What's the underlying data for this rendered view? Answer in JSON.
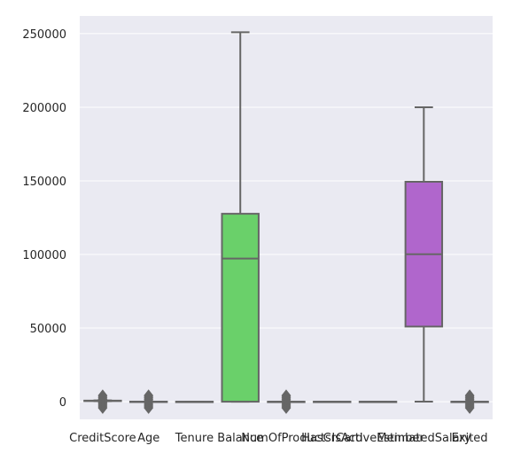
{
  "chart_data": {
    "type": "box",
    "title": "",
    "xlabel": "",
    "ylabel": "",
    "categories": [
      "CreditScore",
      "Age",
      "Tenure",
      "Balance",
      "NumOfProducts",
      "HasCrCard",
      "IsActiveMember",
      "EstimatedSalary",
      "Exited"
    ],
    "ylim": [
      -12000,
      262000
    ],
    "yticks": [
      0,
      50000,
      100000,
      150000,
      200000,
      250000
    ],
    "ytick_labels": [
      "0",
      "50000",
      "100000",
      "150000",
      "200000",
      "250000"
    ],
    "grid": true,
    "background": "#eaeaf2",
    "box_edge_color": "#666666",
    "boxes": [
      {
        "name": "CreditScore",
        "min": 350,
        "q1": 584,
        "median": 652,
        "q3": 718,
        "max": 850,
        "fill": "#4c72b0",
        "outliers": [
          -4200,
          -3000,
          -1800,
          -600,
          600,
          1800,
          3000,
          4200
        ]
      },
      {
        "name": "Age",
        "min": 18,
        "q1": 32,
        "median": 37,
        "q3": 44,
        "max": 62,
        "fill": "#dd8452",
        "outliers": [
          -4200,
          -3000,
          -1800,
          -600,
          600,
          1800,
          3000,
          4200
        ]
      },
      {
        "name": "Tenure",
        "min": 0,
        "q1": 3,
        "median": 5,
        "q3": 7,
        "max": 10,
        "fill": "#55a868",
        "outliers": []
      },
      {
        "name": "Balance",
        "min": 0,
        "q1": 0,
        "median": 97199,
        "q3": 127644,
        "max": 250898,
        "fill": "#6ad06a",
        "outliers": []
      },
      {
        "name": "NumOfProducts",
        "min": 1,
        "q1": 1,
        "median": 1,
        "q3": 2,
        "max": 3,
        "fill": "#8172b3",
        "outliers": [
          -4200,
          -3000,
          -1800,
          -600,
          600,
          1800,
          3000,
          4200
        ]
      },
      {
        "name": "HasCrCard",
        "min": 0,
        "q1": 0,
        "median": 1,
        "q3": 1,
        "max": 1,
        "fill": "#937860",
        "outliers": []
      },
      {
        "name": "IsActiveMember",
        "min": 0,
        "q1": 0,
        "median": 1,
        "q3": 1,
        "max": 1,
        "fill": "#da8bc3",
        "outliers": []
      },
      {
        "name": "EstimatedSalary",
        "min": 11,
        "q1": 51002,
        "median": 100194,
        "q3": 149388,
        "max": 199992,
        "fill": "#b066cc",
        "outliers": []
      },
      {
        "name": "Exited",
        "min": 0,
        "q1": 0,
        "median": 0,
        "q3": 0,
        "max": 0,
        "fill": "#ccb974",
        "outliers": [
          -4200,
          -3000,
          -1800,
          -600,
          600,
          1800,
          3000,
          4200
        ]
      }
    ]
  }
}
